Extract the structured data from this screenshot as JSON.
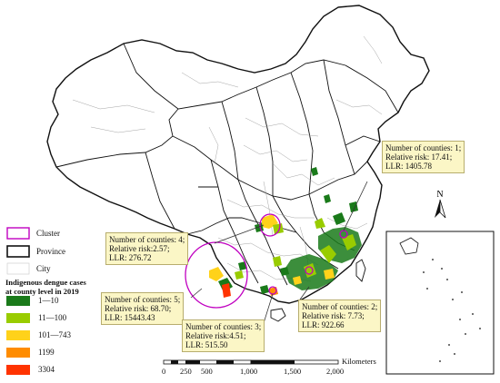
{
  "legend": {
    "cluster": "Cluster",
    "province": "Province",
    "city": "City",
    "cases_title_line1": "Indigenous dengue cases",
    "cases_title_line2": "at county level in 2019",
    "classes": [
      {
        "label": "1—10",
        "color": "#1a7a1a"
      },
      {
        "label": "11—100",
        "color": "#99cc00"
      },
      {
        "label": "101—743",
        "color": "#ffd21a"
      },
      {
        "label": "1199",
        "color": "#ff8c00"
      },
      {
        "label": "3304",
        "color": "#ff3300"
      }
    ],
    "cluster_color": "#c000c0"
  },
  "callouts": [
    {
      "line1": "Number of counties: 1;",
      "line2": "Relative risk: 17.41;",
      "line3": "LLR: 1405.78"
    },
    {
      "line1": "Number of counties: 4;",
      "line2": "Relative risk:2.57;",
      "line3": "LLR: 276.72"
    },
    {
      "line1": "Number of counties: 5;",
      "line2": "Relative risk: 68.70;",
      "line3": "LLR: 15443.43"
    },
    {
      "line1": "Number of counties: 3;",
      "line2": "Relative risk:4.51;",
      "line3": "LLR: 515.50"
    },
    {
      "line1": "Number of counties: 2;",
      "line2": "Relative risk: 7.73;",
      "line3": "LLR: 922.66"
    }
  ],
  "scale": {
    "unit": "Kilometers",
    "ticks": [
      "0",
      "250",
      "500",
      "1,000",
      "1,500",
      "2,000"
    ]
  },
  "north_label": "N"
}
